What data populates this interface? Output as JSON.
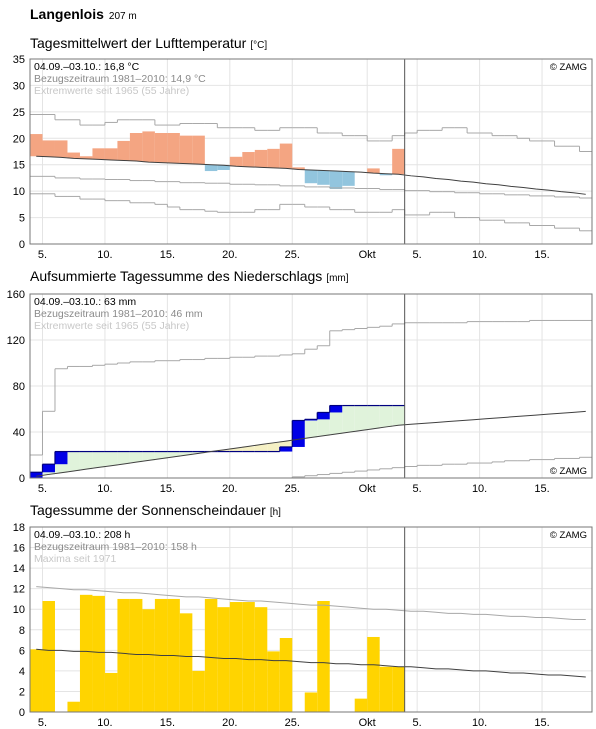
{
  "header": {
    "title": "Langenlois",
    "elevation": "207 m"
  },
  "chart_data": [
    {
      "type": "anomaly",
      "title": "Tagesmittelwert der Lufttemperatur",
      "unit": "[°C]",
      "notes": [
        "04.09.–03.10.: 16,8 °C",
        "Bezugszeitraum 1981–2010: 14,9 °C",
        "Extremwerte seit 1965 (55 Jahre)"
      ],
      "credit": "© ZAMG",
      "credit_position": "top",
      "xlim": [
        0,
        45
      ],
      "xticks": [
        {
          "value": 1,
          "label": "5."
        },
        {
          "value": 6,
          "label": "10."
        },
        {
          "value": 11,
          "label": "15."
        },
        {
          "value": 16,
          "label": "20."
        },
        {
          "value": 21,
          "label": "25."
        },
        {
          "value": 27,
          "label": "Okt"
        },
        {
          "value": 31,
          "label": "5."
        },
        {
          "value": 36,
          "label": "10."
        },
        {
          "value": 41,
          "label": "15."
        }
      ],
      "ylim": [
        0,
        35
      ],
      "yticks": [
        0,
        5,
        10,
        15,
        20,
        25,
        30,
        35
      ],
      "grid": true,
      "period_end": 30,
      "series": [
        {
          "style": "step",
          "color": "#a8a8a8",
          "values": [
            24.5,
            24.5,
            23.5,
            23.5,
            22.5,
            22.5,
            23,
            23.5,
            23.5,
            23.5,
            22.5,
            22.5,
            22.8,
            22.8,
            22.8,
            22,
            22,
            22,
            21.5,
            21.5,
            22,
            22,
            22,
            21,
            21,
            20.5,
            20.5,
            19.5,
            19.5,
            20.5,
            21,
            21.5,
            21.5,
            22,
            22,
            21,
            21,
            20.5,
            20.5,
            20,
            19.5,
            19.5,
            18.5,
            18.5,
            17.5
          ]
        },
        {
          "style": "step",
          "color": "#a8a8a8",
          "values": [
            12.8,
            12.8,
            12.5,
            12.5,
            12.3,
            12.3,
            12.2,
            12.2,
            12,
            12,
            11.8,
            11.8,
            11.6,
            11.6,
            11.5,
            11.5,
            11.3,
            11.3,
            11.2,
            11.2,
            11,
            11,
            10.8,
            10.8,
            10.6,
            10.6,
            10.5,
            10.5,
            10.3,
            10.3,
            10.1,
            10.1,
            9.9,
            9.9,
            9.7,
            9.7,
            9.5,
            9.5,
            9.3,
            9.3,
            9.1,
            9.1,
            8.9,
            8.9,
            8.7
          ]
        },
        {
          "style": "step",
          "color": "#a8a8a8",
          "values": [
            9.5,
            9.5,
            9,
            9,
            8.5,
            8.5,
            8.2,
            8.2,
            7.8,
            7.8,
            7.5,
            7,
            6.5,
            6.5,
            6.2,
            6,
            6,
            6,
            6.5,
            6.5,
            7.5,
            7.5,
            7,
            7,
            6.5,
            6.5,
            6,
            6,
            6,
            6.5,
            5.5,
            5.5,
            6,
            6,
            5,
            5,
            4.5,
            4.5,
            4,
            4,
            3.5,
            3.5,
            3,
            3,
            2.5
          ]
        },
        {
          "style": "line",
          "color": "#404040",
          "values": [
            16.6,
            16.5,
            16.4,
            16.2,
            16.1,
            16.0,
            15.9,
            15.8,
            15.7,
            15.5,
            15.4,
            15.3,
            15.2,
            15.1,
            15.0,
            14.9,
            14.7,
            14.6,
            14.5,
            14.4,
            14.3,
            14.1,
            14.0,
            13.9,
            13.8,
            13.7,
            13.6,
            13.4,
            13.3,
            13.2,
            12.9,
            12.7,
            12.4,
            12.2,
            11.9,
            11.7,
            11.4,
            11.2,
            10.9,
            10.7,
            10.4,
            10.2,
            9.9,
            9.7,
            9.4
          ]
        },
        {
          "style": "anomaly",
          "colors": [
            "#f4a582",
            "#92c5de"
          ],
          "values": [
            20.8,
            19.6,
            19.6,
            17.3,
            16.6,
            18.1,
            18.1,
            19.5,
            21.0,
            21.3,
            21.0,
            21.0,
            20.5,
            20.5,
            13.8,
            14.0,
            16.5,
            17.4,
            17.8,
            18.0,
            19.0,
            14.5,
            11.5,
            11.2,
            10.4,
            11.0,
            13.6,
            14.3,
            13.0,
            18.0
          ]
        }
      ]
    },
    {
      "type": "cumulative",
      "title": "Aufsummierte Tagessumme des Niederschlags",
      "unit": "[mm]",
      "notes": [
        "04.09.–03.10.: 63 mm",
        "Bezugszeitraum 1981–2010: 46 mm",
        "Extremwerte seit 1965 (55 Jahre)"
      ],
      "credit": "© ZAMG",
      "credit_position": "bottom",
      "xlim": [
        0,
        45
      ],
      "xticks": [
        {
          "value": 1,
          "label": "5."
        },
        {
          "value": 6,
          "label": "10."
        },
        {
          "value": 11,
          "label": "15."
        },
        {
          "value": 16,
          "label": "20."
        },
        {
          "value": 21,
          "label": "25."
        },
        {
          "value": 27,
          "label": "Okt"
        },
        {
          "value": 31,
          "label": "5."
        },
        {
          "value": 36,
          "label": "10."
        },
        {
          "value": 41,
          "label": "15."
        }
      ],
      "ylim": [
        0,
        160
      ],
      "yticks": [
        0,
        40,
        80,
        120,
        160
      ],
      "grid": true,
      "period_end": 30,
      "series": [
        {
          "style": "step",
          "color": "#a8a8a8",
          "values": [
            20,
            58,
            95,
            97,
            97,
            98,
            99,
            100,
            101,
            101,
            102,
            102,
            103,
            103,
            104,
            104,
            105,
            105,
            106,
            106,
            107,
            108,
            112,
            115,
            128,
            129,
            130,
            131,
            132,
            134,
            135,
            135,
            135,
            135,
            135,
            136,
            136,
            136,
            136,
            136,
            137,
            137,
            137,
            137,
            137
          ]
        },
        {
          "style": "step",
          "color": "#a8a8a8",
          "values": [
            0,
            0,
            0,
            0,
            0,
            0,
            0,
            0,
            0,
            0,
            0,
            0,
            0,
            0,
            0,
            0,
            0,
            0,
            0,
            0,
            0,
            1,
            2,
            3,
            4,
            5,
            6,
            7,
            8,
            9,
            10,
            11,
            11,
            12,
            12,
            13,
            13,
            14,
            15,
            15,
            16,
            16,
            17,
            17,
            18
          ]
        },
        {
          "style": "line",
          "color": "#404040",
          "values": [
            1.5,
            3.1,
            4.6,
            6.1,
            7.7,
            9.2,
            10.7,
            12.2,
            13.8,
            15.3,
            16.8,
            18.4,
            19.9,
            21.4,
            23.0,
            24.5,
            26.0,
            27.5,
            29.1,
            30.6,
            32.1,
            33.7,
            35.2,
            36.7,
            38.3,
            39.8,
            41.3,
            42.8,
            44.4,
            45.9,
            46.7,
            47.5,
            48.3,
            49.1,
            49.9,
            50.7,
            51.5,
            52.3,
            53.1,
            53.9,
            54.7,
            55.5,
            56.3,
            57.1,
            57.9
          ]
        },
        {
          "style": "cumulative",
          "color": "#000080",
          "colors": [
            "#0000e6",
            "#e0f3db",
            "#f5f0c4"
          ],
          "values": [
            5,
            12,
            23,
            23,
            23,
            23,
            23,
            23,
            23,
            23,
            23,
            23,
            23,
            23,
            23,
            23,
            23,
            23,
            23,
            23,
            27,
            50,
            51,
            57,
            63,
            63,
            63,
            63,
            63,
            63
          ]
        }
      ]
    },
    {
      "type": "bar",
      "title": "Tagessumme der Sonnenscheindauer",
      "unit": "[h]",
      "notes": [
        "04.09.–03.10.: 208 h",
        "Bezugszeitraum 1981–2010: 158 h",
        "Maxima seit 1971"
      ],
      "credit": "© ZAMG",
      "credit_position": "top",
      "xlim": [
        0,
        45
      ],
      "xticks": [
        {
          "value": 1,
          "label": "5."
        },
        {
          "value": 6,
          "label": "10."
        },
        {
          "value": 11,
          "label": "15."
        },
        {
          "value": 16,
          "label": "20."
        },
        {
          "value": 21,
          "label": "25."
        },
        {
          "value": 27,
          "label": "Okt"
        },
        {
          "value": 31,
          "label": "5."
        },
        {
          "value": 36,
          "label": "10."
        },
        {
          "value": 41,
          "label": "15."
        }
      ],
      "ylim": [
        0,
        18
      ],
      "yticks": [
        0,
        2,
        4,
        6,
        8,
        10,
        12,
        14,
        16,
        18
      ],
      "grid": true,
      "period_end": 30,
      "series": [
        {
          "style": "bar",
          "color": "#ffd400",
          "values": [
            6.1,
            10.8,
            0,
            1.0,
            11.4,
            11.3,
            3.8,
            11.0,
            11.0,
            10.0,
            11.0,
            11.0,
            9.6,
            4.0,
            11.0,
            10.2,
            10.7,
            10.7,
            10.2,
            5.9,
            7.2,
            0,
            1.9,
            10.8,
            0,
            0,
            1.3,
            7.3,
            4.4,
            4.4
          ]
        },
        {
          "style": "line",
          "color": "#404040",
          "values": [
            6.1,
            6.0,
            6.0,
            5.9,
            5.9,
            5.8,
            5.8,
            5.7,
            5.6,
            5.6,
            5.5,
            5.5,
            5.4,
            5.4,
            5.3,
            5.2,
            5.2,
            5.1,
            5.1,
            5.0,
            5.0,
            4.9,
            4.8,
            4.8,
            4.7,
            4.7,
            4.6,
            4.6,
            4.5,
            4.4,
            4.4,
            4.3,
            4.2,
            4.2,
            4.1,
            4.0,
            4.0,
            3.9,
            3.8,
            3.8,
            3.7,
            3.6,
            3.6,
            3.5,
            3.4
          ]
        },
        {
          "style": "line",
          "color": "#a8a8a8",
          "values": [
            12.2,
            12.1,
            12.0,
            11.9,
            11.9,
            11.8,
            11.7,
            11.6,
            11.6,
            11.5,
            11.4,
            11.3,
            11.2,
            11.2,
            11.1,
            11.0,
            10.9,
            10.8,
            10.8,
            10.7,
            10.6,
            10.5,
            10.4,
            10.4,
            10.3,
            10.2,
            10.1,
            10.0,
            10.0,
            9.9,
            9.8,
            9.8,
            9.7,
            9.6,
            9.6,
            9.5,
            9.5,
            9.4,
            9.3,
            9.3,
            9.2,
            9.2,
            9.1,
            9.0,
            9.0
          ]
        }
      ]
    }
  ]
}
